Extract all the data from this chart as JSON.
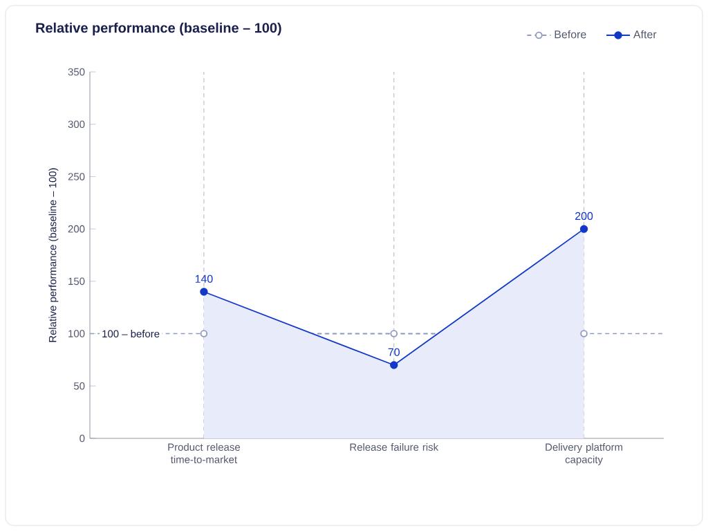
{
  "chart_data": {
    "type": "line",
    "title": "Relative performance (baseline – 100)",
    "ylabel": "Relative performance (baseline – 100)",
    "categories": [
      "Product release time-to-market",
      "Release failure risk",
      "Delivery platform capacity"
    ],
    "series": [
      {
        "name": "Before",
        "color": "#8f9ac0",
        "values": [
          100,
          100,
          100
        ],
        "line_style": "dashed",
        "marker": "circle"
      },
      {
        "name": "After",
        "type": "area",
        "color": "#1238c8",
        "values": [
          140,
          70,
          200
        ],
        "value_labels": [
          "140",
          "70",
          "200"
        ],
        "marker": "circle"
      }
    ],
    "ylim": [
      0,
      350
    ],
    "yticks": [
      0,
      50,
      100,
      150,
      200,
      250,
      300,
      350
    ],
    "grid": "x",
    "legend": "top right",
    "ref_lines": [
      {
        "axis": "y",
        "value": 100,
        "label": "100 – before",
        "color": "#8f9ac0",
        "line_style": "dashed"
      }
    ]
  }
}
